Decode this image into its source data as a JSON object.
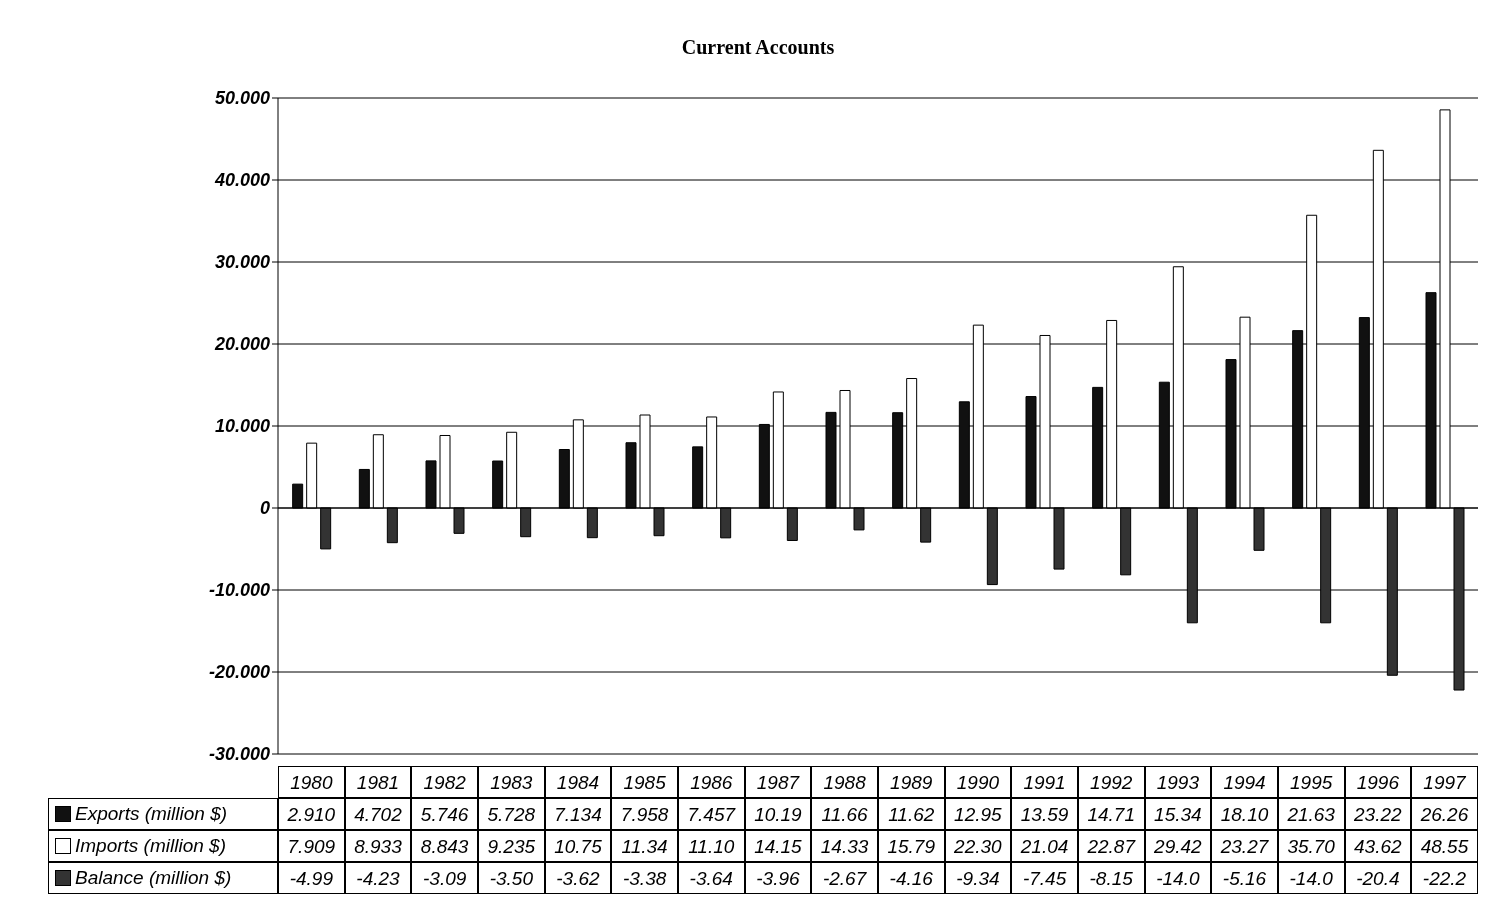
{
  "chart_data": {
    "type": "bar",
    "title": "Current Accounts",
    "categories": [
      "1980",
      "1981",
      "1982",
      "1983",
      "1984",
      "1985",
      "1986",
      "1987",
      "1988",
      "1989",
      "1990",
      "1991",
      "1992",
      "1993",
      "1994",
      "1995",
      "1996",
      "1997"
    ],
    "series": [
      {
        "name": "Exports (million $)",
        "color": "#111111",
        "values": [
          2.91,
          4.702,
          5.746,
          5.728,
          7.134,
          7.958,
          7.457,
          10.19,
          11.66,
          11.62,
          12.95,
          13.59,
          14.71,
          15.34,
          18.1,
          21.63,
          23.22,
          26.26
        ],
        "value_labels": [
          "2.910",
          "4.702",
          "5.746",
          "5.728",
          "7.134",
          "7.958",
          "7.457",
          "10.19",
          "11.66",
          "11.62",
          "12.95",
          "13.59",
          "14.71",
          "15.34",
          "18.10",
          "21.63",
          "23.22",
          "26.26"
        ]
      },
      {
        "name": "Imports (million $)",
        "color": "#ffffff",
        "values": [
          7.909,
          8.933,
          8.843,
          9.235,
          10.75,
          11.34,
          11.1,
          14.15,
          14.33,
          15.79,
          22.3,
          21.04,
          22.87,
          29.42,
          23.27,
          35.7,
          43.62,
          48.55
        ],
        "value_labels": [
          "7.909",
          "8.933",
          "8.843",
          "9.235",
          "10.75",
          "11.34",
          "11.10",
          "14.15",
          "14.33",
          "15.79",
          "22.30",
          "21.04",
          "22.87",
          "29.42",
          "23.27",
          "35.70",
          "43.62",
          "48.55"
        ]
      },
      {
        "name": "Balance (million $)",
        "color": "#333333",
        "values": [
          -4.99,
          -4.23,
          -3.09,
          -3.5,
          -3.62,
          -3.38,
          -3.64,
          -3.96,
          -2.67,
          -4.16,
          -9.34,
          -7.45,
          -8.15,
          -14.0,
          -5.16,
          -14.0,
          -20.4,
          -22.2
        ],
        "value_labels": [
          "-4.99",
          "-4.23",
          "-3.09",
          "-3.50",
          "-3.62",
          "-3.38",
          "-3.64",
          "-3.96",
          "-2.67",
          "-4.16",
          "-9.34",
          "-7.45",
          "-8.15",
          "-14.0",
          "-5.16",
          "-14.0",
          "-20.4",
          "-22.2"
        ]
      }
    ],
    "ylim": [
      -30,
      50
    ],
    "yticks": [
      {
        "value": -30,
        "label": "-30.000"
      },
      {
        "value": -20,
        "label": "-20.000"
      },
      {
        "value": -10,
        "label": "-10.000"
      },
      0,
      {
        "value": 10,
        "label": "10.000"
      },
      {
        "value": 20,
        "label": "20.000"
      },
      {
        "value": 30,
        "label": "30.000"
      },
      {
        "value": 40,
        "label": "40.000"
      },
      {
        "value": 50,
        "label": "50.000"
      }
    ],
    "grid": "y",
    "legend": "bottom"
  }
}
